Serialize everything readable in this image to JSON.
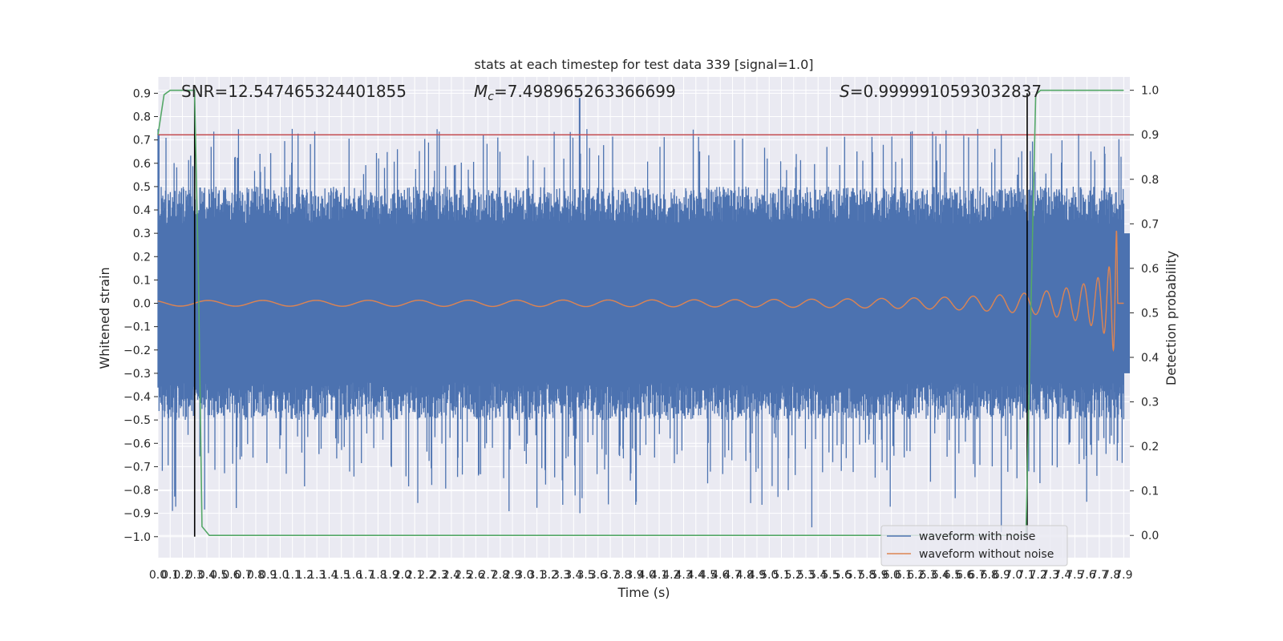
{
  "chart_data": {
    "type": "line",
    "title": "stats at each timestep for test data 339 [signal=1.0]",
    "xlabel": "Time (s)",
    "ylabel": "Whitened strain",
    "y2label": "Detection probability",
    "xlim": [
      0.0,
      7.95
    ],
    "ylim": [
      -1.09,
      0.97
    ],
    "y2lim": [
      -0.05,
      1.03
    ],
    "grid": true,
    "x_ticks": [
      "0.0",
      "0.1",
      "0.2",
      "0.3",
      "0.4",
      "0.5",
      "0.6",
      "0.7",
      "0.8",
      "0.9",
      "1.0",
      "1.1",
      "1.2",
      "1.3",
      "1.4",
      "1.5",
      "1.6",
      "1.7",
      "1.8",
      "1.9",
      "2.0",
      "2.1",
      "2.2",
      "2.3",
      "2.4",
      "2.5",
      "2.6",
      "2.7",
      "2.8",
      "2.9",
      "3.0",
      "3.1",
      "3.2",
      "3.3",
      "3.4",
      "3.5",
      "3.6",
      "3.7",
      "3.8",
      "3.9",
      "4.0",
      "4.1",
      "4.2",
      "4.3",
      "4.4",
      "4.5",
      "4.6",
      "4.7",
      "4.8",
      "4.9",
      "5.0",
      "5.1",
      "5.2",
      "5.3",
      "5.4",
      "5.5",
      "5.6",
      "5.7",
      "5.8",
      "5.9",
      "6.0",
      "6.1",
      "6.2",
      "6.3",
      "6.4",
      "6.5",
      "6.6",
      "6.7",
      "6.8",
      "6.9",
      "7.0",
      "7.1",
      "7.2",
      "7.3",
      "7.4",
      "7.5",
      "7.6",
      "7.7",
      "7.8",
      "7.9"
    ],
    "y_ticks": [
      "0.9",
      "0.8",
      "0.7",
      "0.6",
      "0.5",
      "0.4",
      "0.3",
      "0.2",
      "0.1",
      "0.0",
      "−0.1",
      "−0.2",
      "−0.3",
      "−0.4",
      "−0.5",
      "−0.6",
      "−0.7",
      "−0.8",
      "−0.9",
      "−1.0"
    ],
    "y2_ticks": [
      "1.0",
      "0.9",
      "0.8",
      "0.7",
      "0.6",
      "0.5",
      "0.4",
      "0.3",
      "0.2",
      "0.1",
      "0.0"
    ],
    "annotations": {
      "snr": "SNR=12.547465324401855",
      "mc_symbol": "M",
      "mc_sub": "c",
      "mc_value": "=7.498965263366699",
      "s_symbol": "S",
      "s_value": "=0.9999910593032837"
    },
    "series": [
      {
        "name": "waveform with noise",
        "color": "#4c72b0",
        "style": "dense noise, envelope about ±0.5 with spikes to 0.88 and −0.98"
      },
      {
        "name": "waveform without noise",
        "color": "#dd8452",
        "style": "chirp, amplitude 0.012 rising to peak 0.36 at t≈7.85 s, then 0"
      },
      {
        "name": "detection probability",
        "color": "#55a868",
        "axis": "right",
        "x": [
          0.0,
          0.05,
          0.1,
          0.2,
          0.3,
          0.3,
          0.33,
          0.36,
          0.42,
          0.5,
          7.1,
          7.14,
          7.18,
          7.22,
          7.3,
          7.9
        ],
        "y": [
          0.9,
          0.99,
          1.0,
          1.0,
          1.0,
          0.99,
          0.6,
          0.02,
          0.0,
          0.0,
          0.0,
          0.5,
          0.99,
          1.0,
          1.0,
          1.0
        ]
      }
    ],
    "threshold_line": {
      "value": 0.9,
      "axis": "right",
      "color": "#c44e52"
    },
    "vertical_markers": [
      {
        "x": 0.3,
        "color": "#000000"
      },
      {
        "x": 7.11,
        "color": "#000000"
      }
    ],
    "legend": {
      "position": "bottom-right",
      "entries": [
        "waveform with noise",
        "waveform without noise"
      ]
    }
  }
}
